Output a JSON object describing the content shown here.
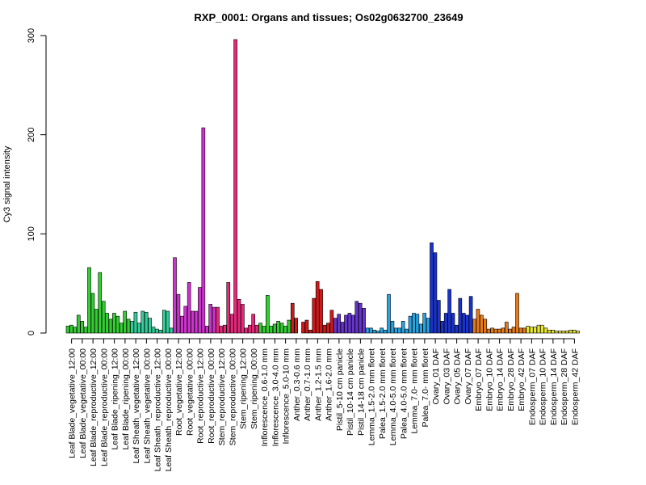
{
  "chart_data": {
    "type": "bar",
    "title": "RXP_0001: Organs and tissues; Os02g0632700_23649",
    "xlabel": "",
    "ylabel": "Cy3 signal intensity",
    "ylim": [
      0,
      300
    ],
    "yticks": [
      0,
      100,
      200,
      300
    ],
    "grid": false,
    "legend": "none",
    "groups": [
      {
        "label": "Leaf Blade_vegetative_12:00",
        "color": "#33cc33",
        "values": [
          7,
          8,
          6
        ]
      },
      {
        "label": "Leaf Blade_vegetative_00:00",
        "color": "#33cc33",
        "values": [
          18,
          12,
          6
        ]
      },
      {
        "label": "Leaf Blade_reproductive_12:00",
        "color": "#33cc33",
        "values": [
          66,
          40,
          24
        ]
      },
      {
        "label": "Leaf Blade_reproductive_00:00",
        "color": "#33cc33",
        "values": [
          61,
          32,
          20
        ]
      },
      {
        "label": "Leaf Blade_ripening_12:00",
        "color": "#33cc33",
        "values": [
          14,
          20,
          17
        ]
      },
      {
        "label": "Leaf Blade_ripening_00:00",
        "color": "#33cc33",
        "values": [
          10,
          22,
          14
        ]
      },
      {
        "label": "Leaf Sheath_vegetative_12:00",
        "color": "#33cc99",
        "values": [
          12,
          21,
          10
        ]
      },
      {
        "label": "Leaf Sheath_vegetative_00:00",
        "color": "#33cc99",
        "values": [
          22,
          21,
          15
        ]
      },
      {
        "label": "Leaf Sheath_reproductive_12:00",
        "color": "#33cc99",
        "values": [
          6,
          4,
          3
        ]
      },
      {
        "label": "Leaf Sheath_reproductive_00:00",
        "color": "#33cc99",
        "values": [
          23,
          22,
          5
        ]
      },
      {
        "label": "Root_vegetative_12:00",
        "color": "#cc33cc",
        "values": [
          76,
          39,
          17
        ]
      },
      {
        "label": "Root_vegetative_00:00",
        "color": "#cc33cc",
        "values": [
          27,
          51,
          22
        ]
      },
      {
        "label": "Root_reproductive_12:00",
        "color": "#cc33cc",
        "values": [
          22,
          46,
          207
        ]
      },
      {
        "label": "Root_reproductive_00:00",
        "color": "#cc33cc",
        "values": [
          7,
          29,
          26
        ]
      },
      {
        "label": "Stem_reproductive_12:00",
        "color": "#e6287a",
        "values": [
          26,
          7,
          8
        ]
      },
      {
        "label": "Stem_reproductive_00:00",
        "color": "#e6287a",
        "values": [
          51,
          19,
          296
        ]
      },
      {
        "label": "Stem_ripening_12:00",
        "color": "#e6287a",
        "values": [
          34,
          29,
          5
        ]
      },
      {
        "label": "Stem_ripening_00:00",
        "color": "#e6287a",
        "values": [
          8,
          19,
          8
        ]
      },
      {
        "label": "Inflorescence_0.6-1.0 mm",
        "color": "#33cc33",
        "values": [
          10,
          7,
          38
        ]
      },
      {
        "label": "Inflorescence_3.0-4.0 mm",
        "color": "#33cc33",
        "values": [
          7,
          9,
          12
        ]
      },
      {
        "label": "Inflorescence_5.0-10 mm",
        "color": "#33cc33",
        "values": [
          10,
          7,
          13
        ]
      },
      {
        "label": "Anther_0.3-0.6 mm",
        "color": "#cc1a1a",
        "values": [
          30,
          15,
          0
        ]
      },
      {
        "label": "Anther_0.7-1.0 mm",
        "color": "#cc1a1a",
        "values": [
          11,
          13,
          3
        ]
      },
      {
        "label": "Anther_1.2-1.5 mm",
        "color": "#cc1a1a",
        "values": [
          35,
          52,
          44
        ]
      },
      {
        "label": "Anther_1.6-2.0 mm",
        "color": "#cc1a1a",
        "values": [
          8,
          10,
          23
        ]
      },
      {
        "label": "Pistil_5-10 cm panicle",
        "color": "#6633cc",
        "values": [
          15,
          19,
          11
        ]
      },
      {
        "label": "Pistil_10-14 cm panicle",
        "color": "#6633cc",
        "values": [
          18,
          20,
          18
        ]
      },
      {
        "label": "Pistil_14-18 cm panicle",
        "color": "#6633cc",
        "values": [
          32,
          30,
          25
        ]
      },
      {
        "label": "Lemma_1.5-2.0 mm floret",
        "color": "#29a3e0",
        "values": [
          5,
          5,
          3
        ]
      },
      {
        "label": "Palea_1.5-2.0 mm floret",
        "color": "#29a3e0",
        "values": [
          2,
          5,
          3
        ]
      },
      {
        "label": "Lemma_4.0-5.0 mm floret",
        "color": "#29a3e0",
        "values": [
          39,
          12,
          5
        ]
      },
      {
        "label": "Palea_4.0-5.0 mm floret",
        "color": "#29a3e0",
        "values": [
          5,
          12,
          4
        ]
      },
      {
        "label": "Lemma_7.0- mm floret",
        "color": "#29a3e0",
        "values": [
          17,
          20,
          19
        ]
      },
      {
        "label": "Palea_7.0- mm floret",
        "color": "#29a3e0",
        "values": [
          9,
          20,
          15
        ]
      },
      {
        "label": "Ovary_01 DAF",
        "color": "#1a33cc",
        "values": [
          91,
          81,
          33
        ]
      },
      {
        "label": "Ovary_03 DAF",
        "color": "#1a33cc",
        "values": [
          12,
          20,
          44
        ]
      },
      {
        "label": "Ovary_05 DAF",
        "color": "#1a33cc",
        "values": [
          20,
          8,
          35
        ]
      },
      {
        "label": "Ovary_07 DAF",
        "color": "#1a33cc",
        "values": [
          20,
          18,
          37
        ]
      },
      {
        "label": "Embryo_07 DAF",
        "color": "#e67a1a",
        "values": [
          14,
          24,
          18
        ]
      },
      {
        "label": "Embryo_10 DAF",
        "color": "#e67a1a",
        "values": [
          14,
          4,
          5
        ]
      },
      {
        "label": "Embryo_14 DAF",
        "color": "#e67a1a",
        "values": [
          4,
          4,
          5
        ]
      },
      {
        "label": "Embryo_28 DAF",
        "color": "#e67a1a",
        "values": [
          11,
          4,
          6
        ]
      },
      {
        "label": "Embryo_42 DAF",
        "color": "#e67a1a",
        "values": [
          40,
          5,
          5
        ]
      },
      {
        "label": "Endosperm_07 DAF",
        "color": "#e6e633",
        "values": [
          7,
          6,
          6
        ]
      },
      {
        "label": "Endosperm_10 DAF",
        "color": "#e6e633",
        "values": [
          8,
          8,
          5
        ]
      },
      {
        "label": "Endosperm_14 DAF",
        "color": "#e6e633",
        "values": [
          3,
          3,
          2
        ]
      },
      {
        "label": "Endosperm_28 DAF",
        "color": "#e6e633",
        "values": [
          2,
          2,
          2
        ]
      },
      {
        "label": "Endosperm_42 DAF",
        "color": "#e6e633",
        "values": [
          3,
          3,
          2
        ]
      }
    ]
  }
}
